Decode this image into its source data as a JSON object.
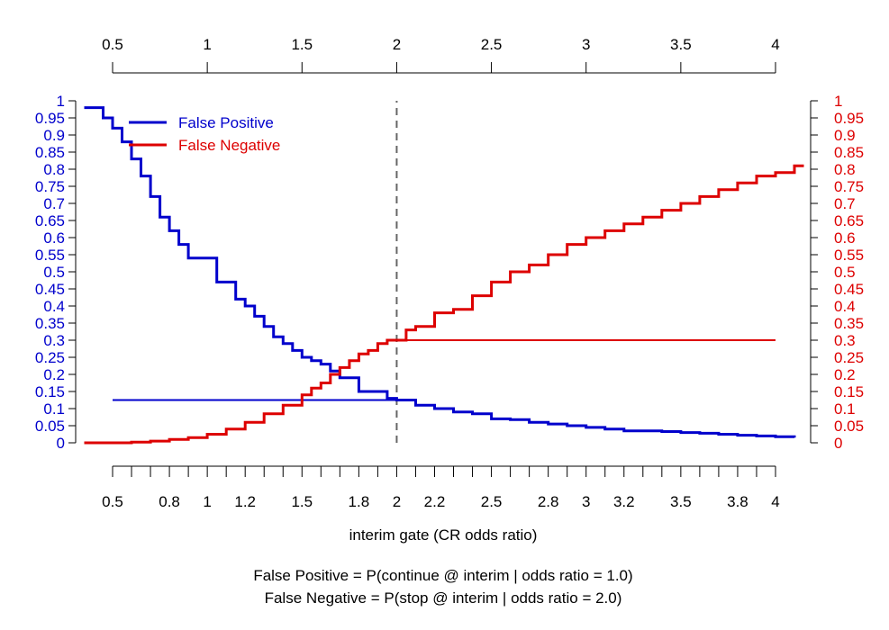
{
  "chart_data": {
    "type": "line",
    "xlabel": "interim gate (CR odds ratio)",
    "xlim": [
      0.35,
      4.15
    ],
    "ylim": [
      0,
      1
    ],
    "top_ticks": [
      0.5,
      1,
      1.5,
      2,
      2.5,
      3,
      3.5,
      4
    ],
    "top_tick_labels": [
      "0.5",
      "1",
      "1.5",
      "2",
      "2.5",
      "3",
      "3.5",
      "4"
    ],
    "bottom_ticks": [
      0.5,
      0.6,
      0.7,
      0.8,
      0.9,
      1,
      1.1,
      1.2,
      1.3,
      1.4,
      1.5,
      1.6,
      1.7,
      1.8,
      1.9,
      2,
      2.1,
      2.2,
      2.3,
      2.4,
      2.5,
      2.6,
      2.7,
      2.8,
      2.9,
      3,
      3.1,
      3.2,
      3.3,
      3.4,
      3.5,
      3.6,
      3.7,
      3.8,
      3.9,
      4
    ],
    "bottom_tick_labels": [
      {
        "value": 0.5,
        "label": "0.5"
      },
      {
        "value": 0.8,
        "label": "0.8"
      },
      {
        "value": 1,
        "label": "1"
      },
      {
        "value": 1.2,
        "label": "1.2"
      },
      {
        "value": 1.5,
        "label": "1.5"
      },
      {
        "value": 1.8,
        "label": "1.8"
      },
      {
        "value": 2,
        "label": "2"
      },
      {
        "value": 2.2,
        "label": "2.2"
      },
      {
        "value": 2.5,
        "label": "2.5"
      },
      {
        "value": 2.8,
        "label": "2.8"
      },
      {
        "value": 3,
        "label": "3"
      },
      {
        "value": 3.2,
        "label": "3.2"
      },
      {
        "value": 3.5,
        "label": "3.5"
      },
      {
        "value": 3.8,
        "label": "3.8"
      },
      {
        "value": 4,
        "label": "4"
      }
    ],
    "y_ticks": [
      0,
      0.05,
      0.1,
      0.15,
      0.2,
      0.25,
      0.3,
      0.35,
      0.4,
      0.45,
      0.5,
      0.55,
      0.6,
      0.65,
      0.7,
      0.75,
      0.8,
      0.85,
      0.9,
      0.95,
      1
    ],
    "y_tick_labels": [
      "0",
      "0.05",
      "0.1",
      "0.15",
      "0.2",
      "0.25",
      "0.3",
      "0.35",
      "0.4",
      "0.45",
      "0.5",
      "0.55",
      "0.6",
      "0.65",
      "0.7",
      "0.75",
      "0.8",
      "0.85",
      "0.9",
      "0.95",
      "1"
    ],
    "series": [
      {
        "name": "False Positive",
        "color": "#0000CC",
        "x": [
          0.35,
          0.45,
          0.5,
          0.55,
          0.6,
          0.65,
          0.7,
          0.75,
          0.8,
          0.85,
          0.9,
          0.95,
          1.0,
          1.05,
          1.1,
          1.15,
          1.2,
          1.25,
          1.3,
          1.35,
          1.4,
          1.45,
          1.5,
          1.55,
          1.6,
          1.65,
          1.7,
          1.75,
          1.8,
          1.85,
          1.9,
          1.95,
          2.0,
          2.1,
          2.2,
          2.3,
          2.4,
          2.5,
          2.6,
          2.7,
          2.8,
          2.9,
          3.0,
          3.1,
          3.2,
          3.3,
          3.4,
          3.5,
          3.6,
          3.7,
          3.8,
          3.9,
          4.0,
          4.1
        ],
        "y": [
          0.98,
          0.95,
          0.92,
          0.88,
          0.83,
          0.78,
          0.72,
          0.66,
          0.62,
          0.58,
          0.54,
          0.54,
          0.54,
          0.47,
          0.47,
          0.42,
          0.4,
          0.37,
          0.34,
          0.31,
          0.29,
          0.27,
          0.25,
          0.24,
          0.23,
          0.21,
          0.19,
          0.19,
          0.15,
          0.15,
          0.15,
          0.13,
          0.125,
          0.11,
          0.1,
          0.09,
          0.085,
          0.07,
          0.068,
          0.06,
          0.055,
          0.05,
          0.045,
          0.04,
          0.035,
          0.035,
          0.033,
          0.03,
          0.028,
          0.025,
          0.022,
          0.02,
          0.018,
          0.015
        ]
      },
      {
        "name": "False Negative",
        "color": "#DD0000",
        "x": [
          0.35,
          0.5,
          0.6,
          0.7,
          0.8,
          0.9,
          1.0,
          1.1,
          1.2,
          1.3,
          1.4,
          1.5,
          1.55,
          1.6,
          1.65,
          1.7,
          1.75,
          1.8,
          1.85,
          1.9,
          1.95,
          2.0,
          2.05,
          2.1,
          2.2,
          2.3,
          2.4,
          2.5,
          2.6,
          2.7,
          2.8,
          2.9,
          3.0,
          3.1,
          3.2,
          3.3,
          3.4,
          3.5,
          3.6,
          3.7,
          3.8,
          3.9,
          4.0,
          4.1,
          4.15
        ],
        "y": [
          0.0,
          0.0,
          0.002,
          0.005,
          0.01,
          0.015,
          0.025,
          0.04,
          0.06,
          0.085,
          0.11,
          0.14,
          0.16,
          0.175,
          0.2,
          0.22,
          0.24,
          0.26,
          0.27,
          0.29,
          0.3,
          0.3,
          0.33,
          0.34,
          0.38,
          0.39,
          0.43,
          0.47,
          0.5,
          0.52,
          0.55,
          0.58,
          0.6,
          0.62,
          0.64,
          0.66,
          0.68,
          0.7,
          0.72,
          0.74,
          0.76,
          0.78,
          0.79,
          0.81,
          0.81
        ]
      }
    ],
    "reference_lines": [
      {
        "name": "fp-reference",
        "color": "#0000CC",
        "x": [
          0.5,
          2.0
        ],
        "y": 0.125
      },
      {
        "name": "fn-reference",
        "color": "#DD0000",
        "x": [
          2.0,
          4.0
        ],
        "y": 0.3
      }
    ],
    "vline": {
      "x": 2.0,
      "y0": 0,
      "y1": 1,
      "color": "#666666",
      "style": "dashed"
    },
    "legend": {
      "position": "top-left",
      "entries": [
        "False Positive",
        "False Negative"
      ]
    },
    "footnote_lines": [
      "False Positive = P(continue @ interim | odds ratio = 1.0)",
      "False Negative = P(stop @ interim | odds ratio = 2.0)"
    ]
  }
}
